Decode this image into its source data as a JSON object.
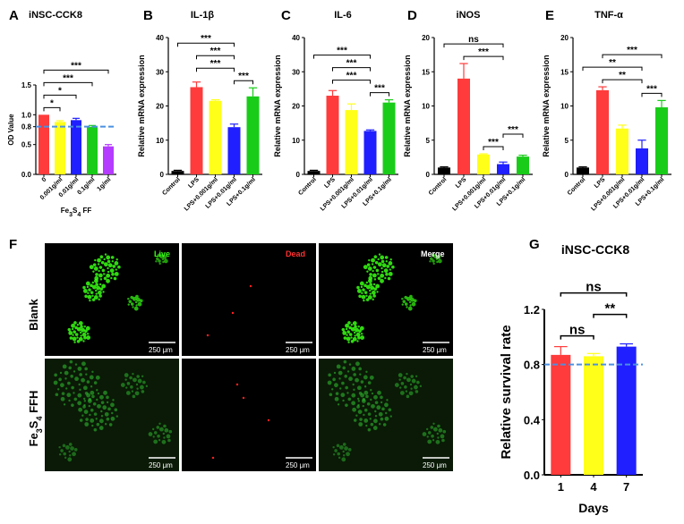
{
  "colors": {
    "red": "#ff3b3b",
    "yellow": "#ffff1a",
    "blue": "#1f1fff",
    "green": "#19cc19",
    "purple": "#b43bff",
    "black": "#000000",
    "dashed_line": "#4a90e2",
    "micrograph_bg": "#000000",
    "live_green": "#39ff14",
    "dead_red": "#ff2020"
  },
  "chart_data": [
    {
      "panel": "A",
      "type": "bar",
      "title": "iNSC-CCK8",
      "ylabel": "OD Value",
      "xlabel": "Fe3S4 FF",
      "ylim": [
        0,
        1.5
      ],
      "yticks": [
        "0.0",
        "0.5",
        "0.8",
        "1.0",
        "1.5"
      ],
      "categories": [
        "0",
        "0.001g/ml",
        "0.01g/ml",
        "0.1g/ml",
        "1g/ml"
      ],
      "values": [
        1.0,
        0.88,
        0.91,
        0.8,
        0.47
      ],
      "errors": [
        0.0,
        0.02,
        0.03,
        0.02,
        0.03
      ],
      "colors": [
        "red",
        "yellow",
        "blue",
        "green",
        "purple"
      ],
      "reference_line": 0.8,
      "significance": [
        {
          "from": 0,
          "to": 1,
          "label": "*"
        },
        {
          "from": 0,
          "to": 2,
          "label": "*"
        },
        {
          "from": 0,
          "to": 3,
          "label": "***"
        },
        {
          "from": 0,
          "to": 4,
          "label": "***"
        }
      ]
    },
    {
      "panel": "B",
      "type": "bar",
      "title": "IL-1β",
      "ylabel": "Relative mRNA expression",
      "ylim": [
        0,
        40
      ],
      "yticks": [
        "0",
        "10",
        "20",
        "30",
        "40"
      ],
      "categories": [
        "Control",
        "LPS",
        "LPS+0.001g/ml",
        "LPS+0.01g/ml",
        "LPS+0.1g/ml"
      ],
      "values": [
        1.0,
        25.5,
        21.5,
        13.8,
        22.8
      ],
      "errors": [
        0.2,
        1.5,
        0.3,
        0.9,
        2.5
      ],
      "colors": [
        "black",
        "red",
        "yellow",
        "blue",
        "green"
      ],
      "significance": [
        {
          "from": 1,
          "to": 3,
          "label": "***"
        },
        {
          "from": 3,
          "to": 4,
          "label": "***"
        },
        {
          "from": 0,
          "to": 3,
          "label": "***"
        },
        {
          "from": 1,
          "to": 3,
          "label": "***"
        }
      ]
    },
    {
      "panel": "C",
      "type": "bar",
      "title": "IL-6",
      "ylabel": "Relative mRNA expression",
      "ylim": [
        0,
        40
      ],
      "yticks": [
        "0",
        "10",
        "20",
        "30",
        "40"
      ],
      "categories": [
        "Control",
        "LPS",
        "LPS+0.001g/ml",
        "LPS+0.01g/ml",
        "LPS+0.1g/ml"
      ],
      "values": [
        1.0,
        23.0,
        18.8,
        12.7,
        21.0
      ],
      "errors": [
        0.2,
        1.5,
        1.8,
        0.3,
        0.8
      ],
      "colors": [
        "black",
        "red",
        "yellow",
        "blue",
        "green"
      ],
      "significance": [
        {
          "from": 1,
          "to": 3,
          "label": "***"
        },
        {
          "from": 3,
          "to": 4,
          "label": "***"
        },
        {
          "from": 0,
          "to": 3,
          "label": "***"
        },
        {
          "from": 1,
          "to": 3,
          "label": "***"
        }
      ]
    },
    {
      "panel": "D",
      "type": "bar",
      "title": "iNOS",
      "ylabel": "Relative mRNA expression",
      "ylim": [
        0,
        20
      ],
      "yticks": [
        "0",
        "5",
        "10",
        "15",
        "20"
      ],
      "categories": [
        "Control",
        "LPS",
        "LPS+0.001g/ml",
        "LPS+0.01g/ml",
        "LPS+0.1g/ml"
      ],
      "values": [
        1.0,
        14.0,
        2.9,
        1.5,
        2.6
      ],
      "errors": [
        0.1,
        2.2,
        0.1,
        0.3,
        0.2
      ],
      "colors": [
        "black",
        "red",
        "yellow",
        "blue",
        "green"
      ],
      "significance": [
        {
          "from": 2,
          "to": 3,
          "label": "***"
        },
        {
          "from": 3,
          "to": 4,
          "label": "***"
        },
        {
          "from": 1,
          "to": 3,
          "label": "***"
        },
        {
          "from": 0,
          "to": 3,
          "label": "ns"
        }
      ]
    },
    {
      "panel": "E",
      "type": "bar",
      "title": "TNF-α",
      "ylabel": "Relative mRNA expression",
      "ylim": [
        0,
        20
      ],
      "yticks": [
        "0",
        "5",
        "10",
        "15",
        "20"
      ],
      "categories": [
        "Control",
        "LPS",
        "LPS+0.001g/ml",
        "LPS+0.01g/ml",
        "LPS+0.1g/ml"
      ],
      "values": [
        1.0,
        12.3,
        6.7,
        3.8,
        9.8
      ],
      "errors": [
        0.1,
        0.5,
        0.5,
        1.2,
        1.0
      ],
      "colors": [
        "black",
        "red",
        "yellow",
        "blue",
        "green"
      ],
      "significance": [
        {
          "from": 1,
          "to": 3,
          "label": "**"
        },
        {
          "from": 3,
          "to": 4,
          "label": "***"
        },
        {
          "from": 0,
          "to": 3,
          "label": "**"
        },
        {
          "from": 1,
          "to": 4,
          "label": "***"
        }
      ]
    },
    {
      "panel": "G",
      "type": "bar",
      "title": "iNSC-CCK8",
      "ylabel": "Relative survival rate",
      "xlabel": "Days",
      "ylim": [
        0,
        1.2
      ],
      "yticks": [
        "0.0",
        "0.4",
        "0.8",
        "1.2"
      ],
      "categories": [
        "1",
        "4",
        "7"
      ],
      "values": [
        0.87,
        0.86,
        0.93
      ],
      "errors": [
        0.06,
        0.02,
        0.02
      ],
      "colors": [
        "red",
        "yellow",
        "blue"
      ],
      "reference_line": 0.8,
      "significance": [
        {
          "from": 0,
          "to": 1,
          "label": "ns"
        },
        {
          "from": 1,
          "to": 2,
          "label": "**"
        },
        {
          "from": 0,
          "to": 2,
          "label": "ns"
        }
      ]
    }
  ],
  "panel_f": {
    "letter": "F",
    "columns": [
      "Live",
      "Dead",
      "Merge"
    ],
    "rows": [
      "Blank",
      "Fe3S4 FFH"
    ],
    "scale_bar": "250 μm"
  }
}
